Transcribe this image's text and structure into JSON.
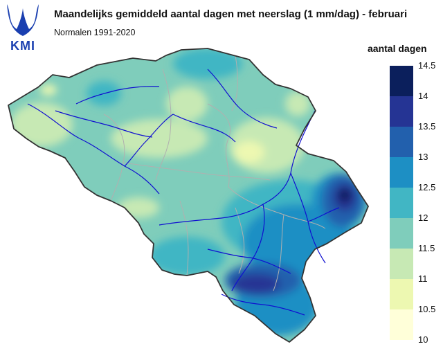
{
  "logo": {
    "text": "KMI",
    "color": "#1a3fb0"
  },
  "title": "Maandelijks gemiddeld aantal dagen met neerslag (1 mm/dag) - februari",
  "subtitle": "Normalen 1991-2020",
  "legend": {
    "title": "aantal dagen",
    "ticks": [
      "14.5",
      "14",
      "13.5",
      "13",
      "12.5",
      "12",
      "11.5",
      "11",
      "10.5",
      "10"
    ],
    "colors": [
      "#0b1f5c",
      "#253494",
      "#2260ad",
      "#1d8fc4",
      "#41b6c4",
      "#7fcdbb",
      "#c7e9b4",
      "#edf8b1",
      "#ffffd9"
    ]
  },
  "map": {
    "region": "Belgium",
    "border_color": "#333333",
    "province_border_color": "#b0b0b0",
    "river_color": "#1010d0",
    "base_color": "#7fcdbb"
  }
}
